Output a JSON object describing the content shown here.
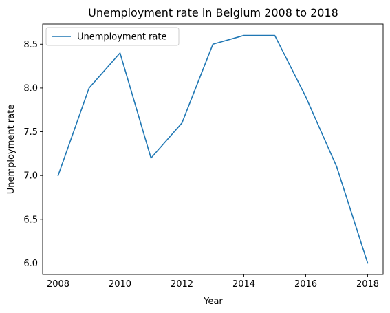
{
  "chart_data": {
    "type": "line",
    "title": "Unemployment rate in Belgium 2008 to 2018",
    "xlabel": "Year",
    "ylabel": "Unemployment rate",
    "xlim": [
      2007.5,
      2018.5
    ],
    "ylim": [
      5.87,
      8.73
    ],
    "xticks": [
      2008,
      2010,
      2012,
      2014,
      2016,
      2018
    ],
    "xtick_labels": [
      "2008",
      "2010",
      "2012",
      "2014",
      "2016",
      "2018"
    ],
    "yticks": [
      6.0,
      6.5,
      7.0,
      7.5,
      8.0,
      8.5
    ],
    "ytick_labels": [
      "6.0",
      "6.5",
      "7.0",
      "7.5",
      "8.0",
      "8.5"
    ],
    "grid": false,
    "legend_position": "top-left",
    "series": [
      {
        "name": "Unemployment rate",
        "color": "#1f77b4",
        "x": [
          2008,
          2009,
          2010,
          2011,
          2012,
          2013,
          2014,
          2015,
          2016,
          2017,
          2018
        ],
        "y": [
          7.0,
          8.0,
          8.4,
          7.2,
          7.6,
          8.5,
          8.6,
          8.6,
          7.9,
          7.1,
          6.0
        ]
      }
    ]
  }
}
